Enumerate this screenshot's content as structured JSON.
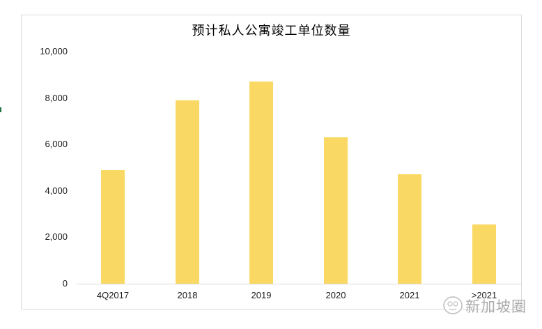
{
  "title": "预计私人公寓竣工单位数量",
  "watermark": {
    "text": "新加坡圈"
  },
  "colors": {
    "bar": "#F9D963",
    "axis": "#D9D9D9",
    "frame": "#D9D9D9",
    "green_mark": "#217346",
    "watermark": "#ABABAB",
    "label_text": "#1A1A1A"
  },
  "chart_data": {
    "type": "bar",
    "title": "预计私人公寓竣工单位数量",
    "categories": [
      "4Q2017",
      "2018",
      "2019",
      "2020",
      "2021",
      ">2021"
    ],
    "values": [
      4900,
      7900,
      8700,
      6300,
      4700,
      2550
    ],
    "xlabel": "",
    "ylabel": "",
    "ylim": [
      0,
      10000
    ],
    "ytick_step": 2000,
    "ytick_labels": [
      "0",
      "2,000",
      "4,000",
      "6,000",
      "8,000",
      "10,000"
    ],
    "grid": false,
    "legend": false,
    "bar_color": "#F9D963"
  }
}
